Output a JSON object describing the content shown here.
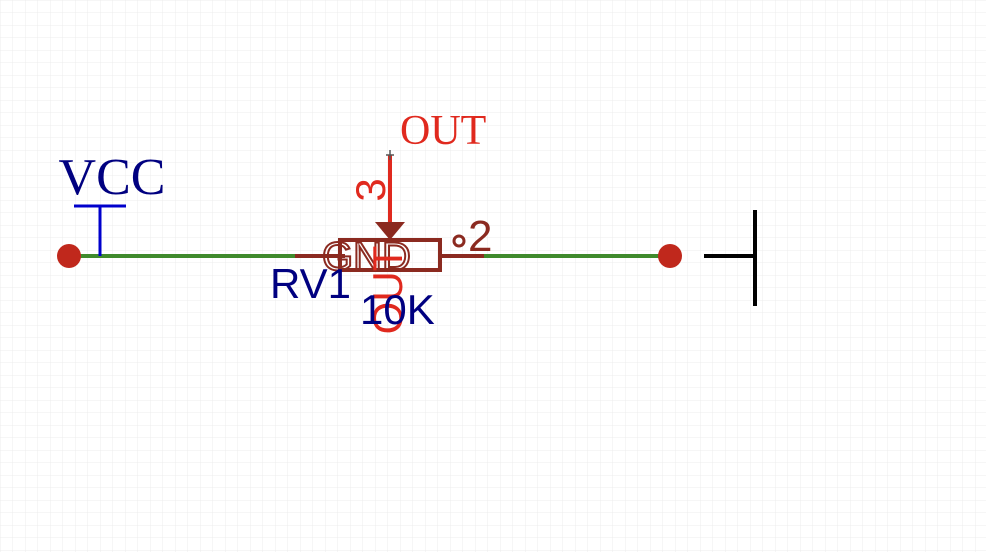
{
  "colors": {
    "grid": "#e8e8e8",
    "wire": "#3f8a2c",
    "junction": "#c0281c",
    "vcc": "#0000cc",
    "vcc_text": "#000080",
    "pot": "#8b2a20",
    "pin": "#e0291e",
    "net_label": "#e0291e",
    "designator": "#000080",
    "ground": "#000000"
  },
  "power": {
    "label": "VCC"
  },
  "netlabel": {
    "label": "OUT"
  },
  "component": {
    "designator": "RV1",
    "value": "10K",
    "pin_wiper_number": "3",
    "pin_wiper_name": "OUT",
    "pin_right_number": "2",
    "pin_left_name": "GND"
  }
}
